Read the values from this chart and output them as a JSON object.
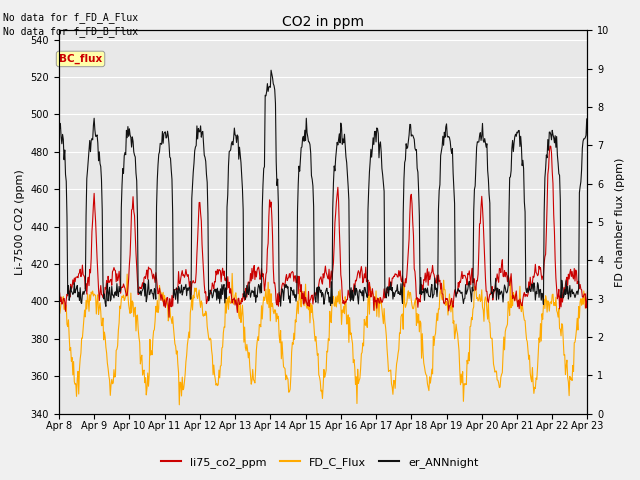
{
  "title": "CO2 in ppm",
  "ylabel_left": "Li-7500 CO2 (ppm)",
  "ylabel_right": "FD chamber flux (ppm)",
  "ylim_left": [
    340,
    545
  ],
  "ylim_right": [
    0.0,
    10.0
  ],
  "yticks_left": [
    340,
    360,
    380,
    400,
    420,
    440,
    460,
    480,
    500,
    520,
    540
  ],
  "yticks_right": [
    0.0,
    1.0,
    2.0,
    3.0,
    4.0,
    5.0,
    6.0,
    7.0,
    8.0,
    9.0,
    10.0
  ],
  "text_no_data_1": "No data for f_FD_A_Flux",
  "text_no_data_2": "No data for f_FD_B_Flux",
  "bc_flux_label": "BC_flux",
  "bc_flux_color": "#cc0000",
  "bc_flux_bg": "#ffffaa",
  "line_colors": {
    "li75": "#cc0000",
    "fd_c": "#ffaa00",
    "ann": "#111111"
  },
  "legend_labels": [
    "li75_co2_ppm",
    "FD_C_Flux",
    "er_ANNnight"
  ],
  "fig_bg": "#f0f0f0",
  "axes_bg": "#e8e8e8",
  "lw": 0.8
}
